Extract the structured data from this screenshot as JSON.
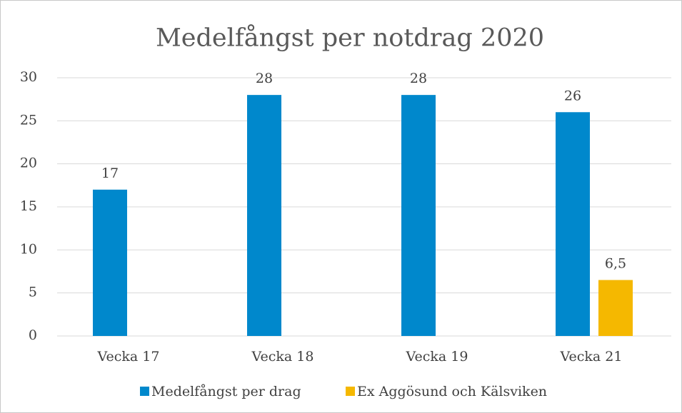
{
  "chart_data": {
    "type": "bar",
    "title": "Medelfångst per notdrag 2020",
    "categories": [
      "Vecka 17",
      "Vecka 18",
      "Vecka 19",
      "Vecka 21"
    ],
    "series": [
      {
        "name": "Medelfångst per drag",
        "color": "#0088cc",
        "values": [
          17,
          28,
          28,
          26
        ]
      },
      {
        "name": "Ex Aggösund och Kälsviken",
        "color": "#f5b800",
        "values": [
          null,
          null,
          null,
          6.5
        ],
        "value_labels": [
          null,
          null,
          null,
          "6,5"
        ]
      }
    ],
    "ylim": [
      0,
      30
    ],
    "yticks": [
      0,
      5,
      10,
      15,
      20,
      25,
      30
    ],
    "grid": true,
    "legend": "bottom"
  }
}
